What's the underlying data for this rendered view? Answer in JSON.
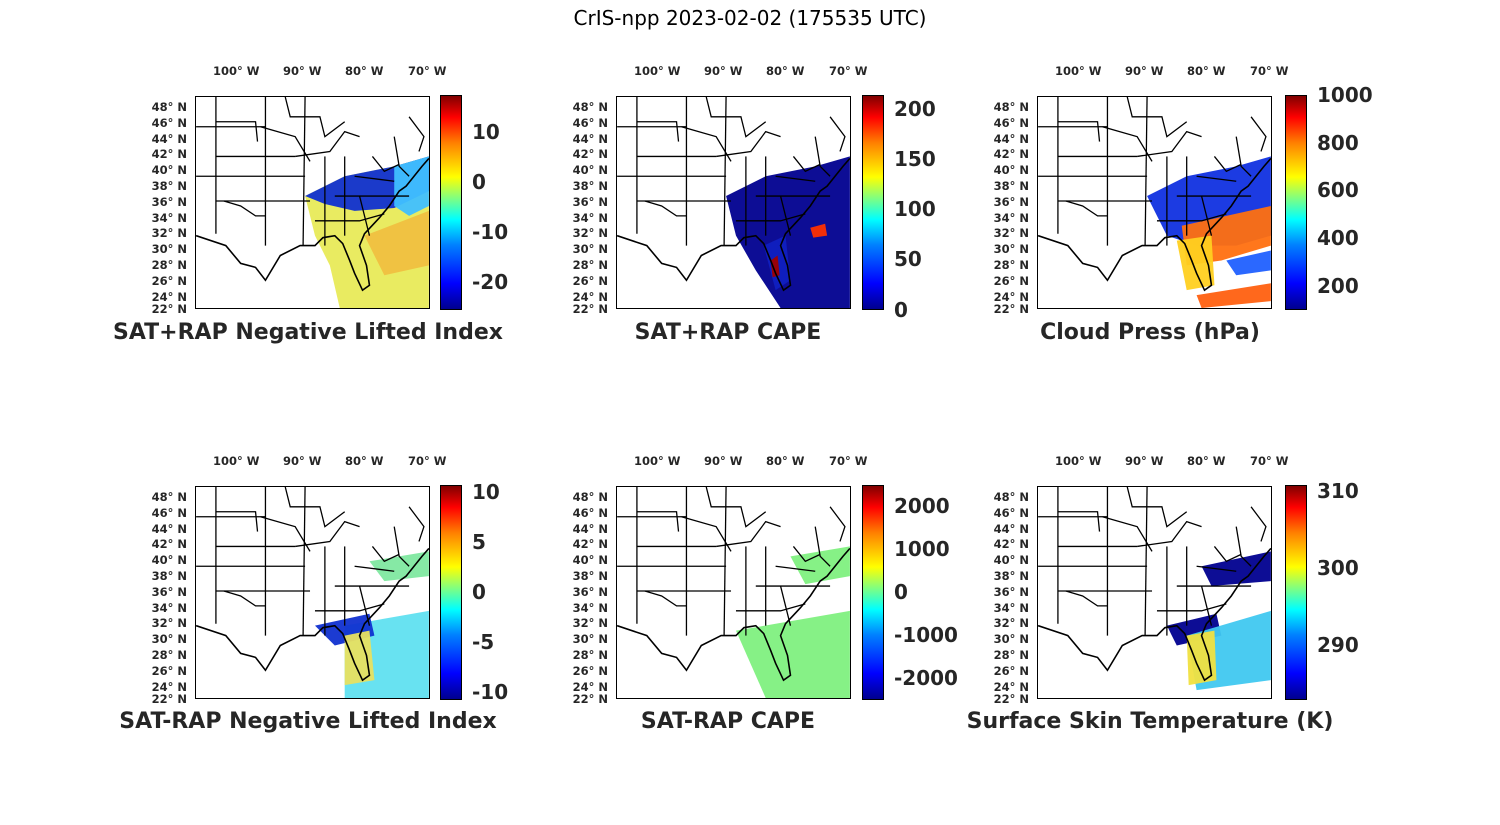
{
  "figure": {
    "title": "CrIS-npp 2023-02-02 (175535 UTC)"
  },
  "lon_ticks": [
    "100° W",
    "90° W",
    "80° W",
    "70° W"
  ],
  "lat_ticks": [
    "48° N",
    "46° N",
    "44° N",
    "42° N",
    "40° N",
    "38° N",
    "36° N",
    "34° N",
    "32° N",
    "30° N",
    "28° N",
    "26° N",
    "24° N",
    "22° N"
  ],
  "colormap": "jet",
  "panels": [
    {
      "id": "sat-rap-plus-li",
      "title": "SAT+RAP Negative Lifted Index",
      "colorbar_ticks": [
        "10",
        "0",
        "-10",
        "-20"
      ]
    },
    {
      "id": "sat-rap-plus-cape",
      "title": "SAT+RAP CAPE",
      "colorbar_ticks": [
        "200",
        "150",
        "100",
        "50",
        "0"
      ]
    },
    {
      "id": "cloud-press",
      "title": "Cloud Press (hPa)",
      "colorbar_ticks": [
        "1000",
        "800",
        "600",
        "400",
        "200"
      ]
    },
    {
      "id": "sat-rap-minus-li",
      "title": "SAT-RAP Negative Lifted Index",
      "colorbar_ticks": [
        "10",
        "5",
        "0",
        "-5",
        "-10"
      ]
    },
    {
      "id": "sat-rap-minus-cape",
      "title": "SAT-RAP CAPE",
      "colorbar_ticks": [
        "2000",
        "1000",
        "0",
        "-1000",
        "-2000"
      ]
    },
    {
      "id": "skin-temp",
      "title": "Surface Skin Temperature (K)",
      "colorbar_ticks": [
        "310",
        "300",
        "290"
      ]
    }
  ]
}
